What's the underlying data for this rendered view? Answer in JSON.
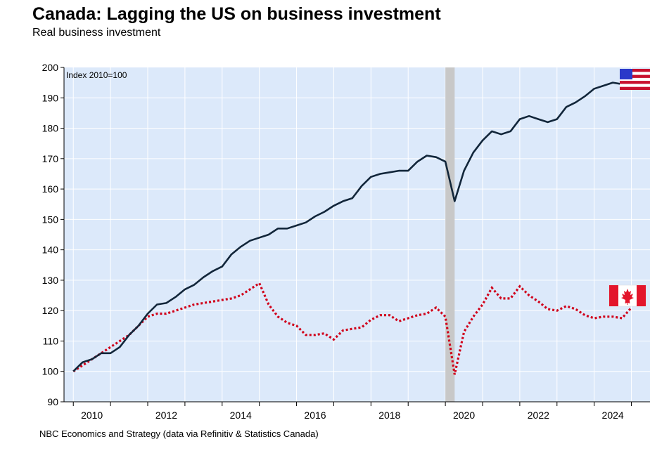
{
  "header": {
    "title": "Canada: Lagging the US on business investment",
    "subtitle": "Real business investment"
  },
  "footer": {
    "source": "NBC Economics and Strategy (data via Refinitiv & Statistics Canada)"
  },
  "chart_data": {
    "type": "line",
    "title": "Canada: Lagging the US on business investment",
    "subtitle": "Real business investment",
    "annotation": "Index 2010=100",
    "xlabel": "",
    "ylabel": "",
    "xlim": [
      2009.75,
      2025.5
    ],
    "ylim": [
      90,
      200
    ],
    "yticks": [
      90,
      100,
      110,
      120,
      130,
      140,
      150,
      160,
      170,
      180,
      190,
      200
    ],
    "xtick_labels": [
      "2010",
      "2012",
      "2014",
      "2016",
      "2018",
      "2020",
      "2022",
      "2024"
    ],
    "xtick_positions": [
      2010,
      2012,
      2014,
      2016,
      2018,
      2020,
      2022,
      2024
    ],
    "recession_band": [
      2020.0,
      2020.25
    ],
    "grid": true,
    "colors": {
      "background": "#dce9fa",
      "grid": "#ffffff",
      "us": "#12263a",
      "canada": "#d0021b",
      "recession": "#c8c8c8"
    },
    "legend_icons": [
      "us-flag-icon",
      "canada-flag-icon"
    ],
    "x": [
      2010.0,
      2010.25,
      2010.5,
      2010.75,
      2011.0,
      2011.25,
      2011.5,
      2011.75,
      2012.0,
      2012.25,
      2012.5,
      2012.75,
      2013.0,
      2013.25,
      2013.5,
      2013.75,
      2014.0,
      2014.25,
      2014.5,
      2014.75,
      2015.0,
      2015.25,
      2015.5,
      2015.75,
      2016.0,
      2016.25,
      2016.5,
      2016.75,
      2017.0,
      2017.25,
      2017.5,
      2017.75,
      2018.0,
      2018.25,
      2018.5,
      2018.75,
      2019.0,
      2019.25,
      2019.5,
      2019.75,
      2020.0,
      2020.25,
      2020.5,
      2020.75,
      2021.0,
      2021.25,
      2021.5,
      2021.75,
      2022.0,
      2022.25,
      2022.5,
      2022.75,
      2023.0,
      2023.25,
      2023.5,
      2023.75,
      2024.0,
      2024.25,
      2024.5,
      2024.75,
      2025.0
    ],
    "series": [
      {
        "key": "us",
        "style": "solid",
        "values": [
          100.0,
          103.0,
          104.0,
          106.0,
          106.0,
          108.0,
          112.0,
          115.0,
          119.0,
          122.0,
          122.5,
          124.5,
          127.0,
          128.5,
          131.0,
          133.0,
          134.5,
          138.5,
          141.0,
          143.0,
          144.0,
          145.0,
          147.0,
          147.0,
          148.0,
          149.0,
          151.0,
          152.5,
          154.5,
          156.0,
          157.0,
          161.0,
          164.0,
          165.0,
          165.5,
          166.0,
          166.0,
          169.0,
          171.0,
          170.5,
          169.0,
          156.0,
          166.0,
          172.0,
          176.0,
          179.0,
          178.0,
          179.0,
          183.0,
          184.0,
          183.0,
          182.0,
          183.0,
          187.0,
          188.5,
          190.5,
          193.0,
          194.0,
          195.0,
          194.5,
          194.5
        ]
      },
      {
        "key": "canada",
        "style": "dotted",
        "values": [
          100.0,
          102.0,
          104.0,
          106.0,
          108.0,
          110.0,
          112.0,
          115.0,
          118.0,
          119.0,
          119.0,
          120.0,
          121.0,
          122.0,
          122.5,
          123.0,
          123.5,
          124.0,
          125.0,
          127.0,
          129.0,
          122.0,
          118.0,
          116.0,
          115.0,
          112.0,
          112.0,
          112.5,
          110.5,
          113.5,
          114.0,
          114.5,
          117.0,
          118.5,
          118.5,
          116.5,
          117.5,
          118.5,
          119.0,
          121.0,
          118.0,
          99.0,
          113.0,
          118.0,
          122.0,
          127.5,
          124.0,
          124.0,
          128.0,
          125.0,
          123.0,
          120.5,
          120.0,
          121.5,
          120.5,
          118.5,
          117.5,
          118.0,
          118.0,
          117.5,
          121.0
        ]
      }
    ]
  }
}
